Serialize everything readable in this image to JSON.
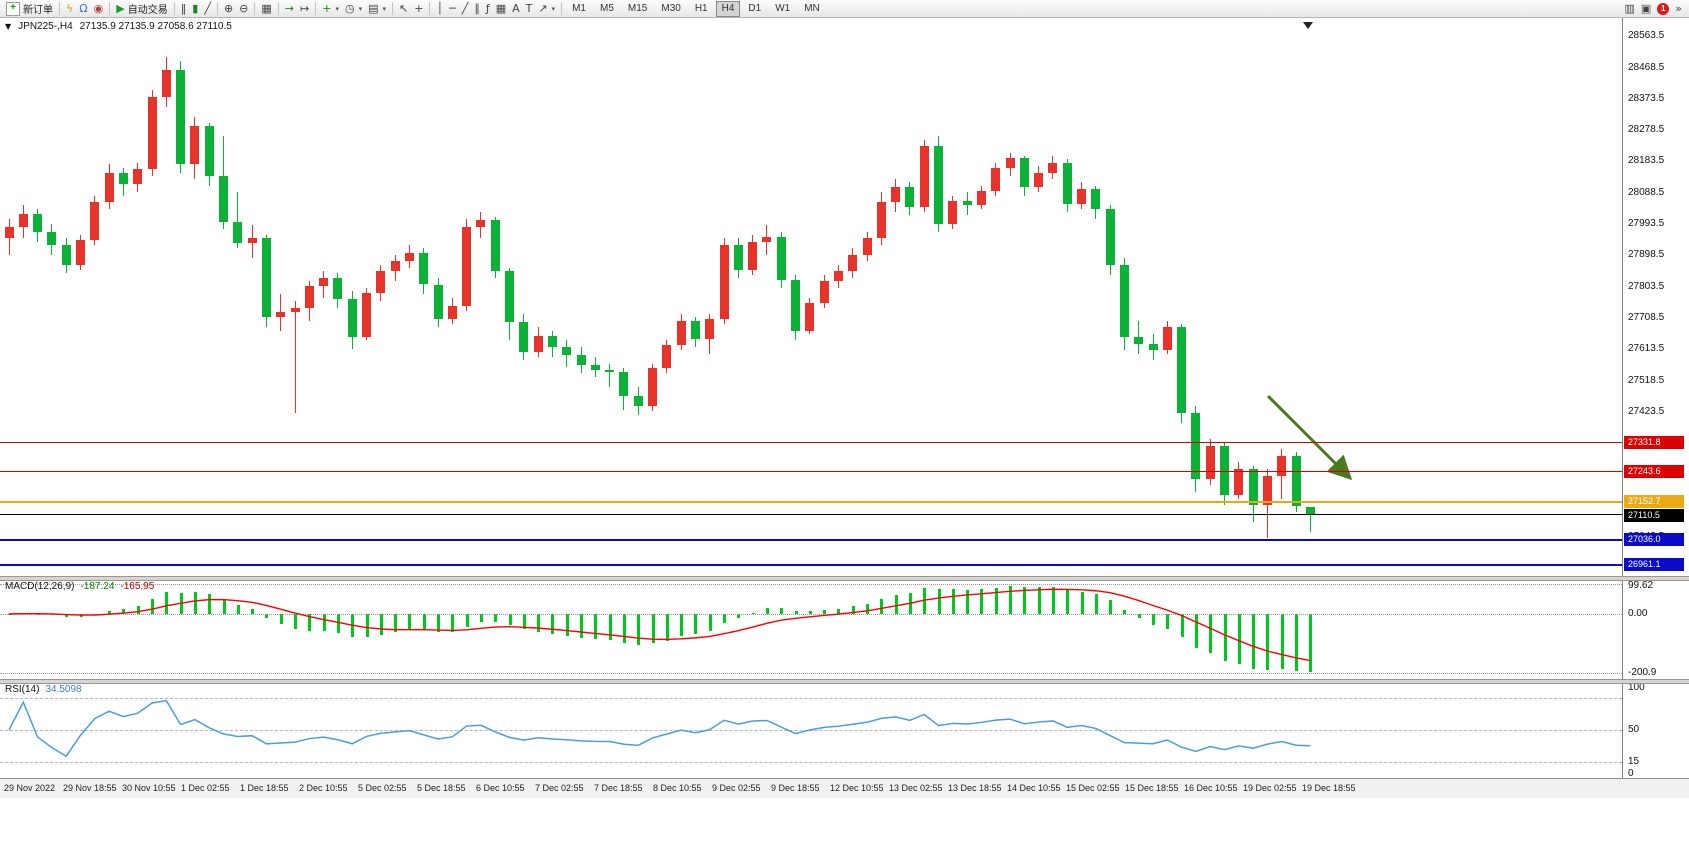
{
  "toolbar": {
    "new_order": "新订单",
    "autotrading": "自动交易",
    "timeframes": [
      "M1",
      "M5",
      "M15",
      "M30",
      "H1",
      "H4",
      "D1",
      "W1",
      "MN"
    ],
    "active_timeframe": "H4",
    "notification_count": "1"
  },
  "icons": {
    "new_order": "+",
    "lightning": "ϟ",
    "headset": "Ω",
    "record": "◉",
    "autotrading_play": "▶",
    "bar_chart": "‖",
    "candle_chart": "▮",
    "line_chart": "╱",
    "zoom_in": "⊕",
    "zoom_out": "⊖",
    "tile_windows": "▦",
    "auto_scroll": "→",
    "chart_shift": "↦",
    "indicators_add": "+",
    "periods": "◷",
    "templates": "▤",
    "cursor": "↖",
    "crosshair": "+",
    "vline": "│",
    "hline": "─",
    "trendline": "╱",
    "channel": "∥",
    "fibonacci": "ƒ",
    "grid": "▦",
    "text": "A",
    "text_label": "T",
    "arrows_tool": "↗",
    "dropdown": "▾",
    "mini_chart": "▥",
    "window": "▣",
    "overflow": "»",
    "symbol_dropdown": "▼"
  },
  "chart": {
    "symbol_period": "JPN225-,H4",
    "ohlc": "27135.9 27135.9 27058.6 27110.5"
  },
  "indicators": {
    "macd_label": "MACD(12,26,9)",
    "macd_value": "-187.24",
    "macd_signal_value": "-165.95",
    "macd_scale": [
      "99.62",
      "0.00",
      "-200.9"
    ],
    "rsi_label": "RSI(14)",
    "rsi_value": "34.5098",
    "rsi_levels": [
      85,
      50,
      15
    ],
    "rsi_scale_labels": [
      {
        "text": "100",
        "v": 100
      },
      {
        "text": "50",
        "v": 50
      },
      {
        "text": "15",
        "v": 15
      },
      {
        "text": "0",
        "v": 0
      }
    ]
  },
  "price_axis": {
    "gridline_labels": [
      "28563.5",
      "28468.5",
      "28373.5",
      "28278.5",
      "28183.5",
      "28088.5",
      "27993.5",
      "27898.5",
      "27803.5",
      "27708.5",
      "27613.5",
      "27518.5",
      "27423.5",
      "27328.5",
      "27233.5",
      "27138.5",
      "27043.5",
      "26948.5"
    ]
  },
  "price_lines": [
    {
      "label": "27331.8",
      "price": 27331.8,
      "color": "#dd0000",
      "width": 1
    },
    {
      "label": "27243.6",
      "price": 27243.6,
      "color": "#dd0000",
      "width": 1
    },
    {
      "label": "27152.7",
      "price": 27152.7,
      "color": "#eda913",
      "width": 2
    },
    {
      "label": "27110.5",
      "price": 27110.5,
      "color": "#000000",
      "width": 1
    },
    {
      "label": "27036.0",
      "price": 27036.0,
      "color": "#0a0ac8",
      "width": 2
    },
    {
      "label": "26961.1",
      "price": 26961.1,
      "color": "#0a0ac8",
      "width": 2
    }
  ],
  "time_axis": [
    "29 Nov 2022",
    "29 Nov 18:55",
    "30 Nov 10:55",
    "1 Dec 02:55",
    "1 Dec 18:55",
    "2 Dec 10:55",
    "5 Dec 02:55",
    "5 Dec 18:55",
    "6 Dec 10:55",
    "7 Dec 02:55",
    "7 Dec 18:55",
    "8 Dec 10:55",
    "9 Dec 02:55",
    "9 Dec 18:55",
    "12 Dec 10:55",
    "13 Dec 02:55",
    "13 Dec 18:55",
    "14 Dec 10:55",
    "15 Dec 02:55",
    "15 Dec 18:55",
    "16 Dec 10:55",
    "19 Dec 02:55",
    "19 Dec 18:55"
  ],
  "chart_data": {
    "type": "candlestick",
    "symbol": "JPN225-",
    "timeframe": "H4",
    "ylim": [
      26925,
      28610
    ],
    "note": "Chinese color convention: red = bullish, green = bearish",
    "colors": {
      "bull": "#e8332a",
      "bear": "#0bb237",
      "macd_hist": "#00c91e",
      "macd_signal": "#ff0000",
      "rsi_line": "#4a9edb",
      "arrow": "#4a7a1e"
    },
    "candles_ohlc": [
      [
        27950,
        28010,
        27900,
        27985
      ],
      [
        27985,
        28050,
        27950,
        28025
      ],
      [
        28025,
        28040,
        27940,
        27970
      ],
      [
        27970,
        27995,
        27900,
        27930
      ],
      [
        27930,
        27950,
        27845,
        27870
      ],
      [
        27870,
        27960,
        27855,
        27945
      ],
      [
        27945,
        28080,
        27930,
        28060
      ],
      [
        28060,
        28175,
        28040,
        28150
      ],
      [
        28150,
        28165,
        28080,
        28115
      ],
      [
        28115,
        28180,
        28090,
        28160
      ],
      [
        28160,
        28400,
        28140,
        28380
      ],
      [
        28380,
        28500,
        28350,
        28460
      ],
      [
        28460,
        28490,
        28150,
        28175
      ],
      [
        28175,
        28320,
        28130,
        28290
      ],
      [
        28290,
        28300,
        28110,
        28140
      ],
      [
        28140,
        28260,
        27980,
        28000
      ],
      [
        28000,
        28090,
        27920,
        27935
      ],
      [
        27935,
        27990,
        27890,
        27950
      ],
      [
        27950,
        27960,
        27680,
        27710
      ],
      [
        27710,
        27780,
        27670,
        27725
      ],
      [
        27725,
        27760,
        27420,
        27740
      ],
      [
        27740,
        27820,
        27700,
        27805
      ],
      [
        27805,
        27850,
        27770,
        27830
      ],
      [
        27830,
        27845,
        27740,
        27765
      ],
      [
        27765,
        27790,
        27615,
        27650
      ],
      [
        27650,
        27800,
        27640,
        27785
      ],
      [
        27785,
        27870,
        27760,
        27850
      ],
      [
        27850,
        27900,
        27820,
        27880
      ],
      [
        27880,
        27930,
        27860,
        27905
      ],
      [
        27905,
        27920,
        27780,
        27810
      ],
      [
        27810,
        27830,
        27680,
        27705
      ],
      [
        27705,
        27770,
        27690,
        27745
      ],
      [
        27745,
        28010,
        27730,
        27985
      ],
      [
        27985,
        28030,
        27950,
        28005
      ],
      [
        28005,
        28015,
        27830,
        27850
      ],
      [
        27850,
        27860,
        27640,
        27695
      ],
      [
        27695,
        27720,
        27580,
        27605
      ],
      [
        27605,
        27680,
        27590,
        27655
      ],
      [
        27655,
        27670,
        27590,
        27620
      ],
      [
        27620,
        27640,
        27560,
        27595
      ],
      [
        27595,
        27620,
        27540,
        27565
      ],
      [
        27565,
        27590,
        27530,
        27550
      ],
      [
        27550,
        27570,
        27500,
        27545
      ],
      [
        27545,
        27555,
        27430,
        27470
      ],
      [
        27470,
        27500,
        27415,
        27440
      ],
      [
        27440,
        27570,
        27425,
        27555
      ],
      [
        27555,
        27640,
        27540,
        27625
      ],
      [
        27625,
        27720,
        27610,
        27700
      ],
      [
        27700,
        27710,
        27620,
        27645
      ],
      [
        27645,
        27720,
        27600,
        27705
      ],
      [
        27705,
        27950,
        27690,
        27930
      ],
      [
        27930,
        27950,
        27830,
        27855
      ],
      [
        27855,
        27960,
        27840,
        27940
      ],
      [
        27940,
        27990,
        27900,
        27955
      ],
      [
        27955,
        27970,
        27800,
        27825
      ],
      [
        27825,
        27840,
        27640,
        27670
      ],
      [
        27670,
        27770,
        27660,
        27755
      ],
      [
        27755,
        27840,
        27740,
        27820
      ],
      [
        27820,
        27870,
        27800,
        27850
      ],
      [
        27850,
        27920,
        27830,
        27900
      ],
      [
        27900,
        27970,
        27880,
        27950
      ],
      [
        27950,
        28090,
        27930,
        28060
      ],
      [
        28060,
        28130,
        28030,
        28105
      ],
      [
        28105,
        28120,
        28020,
        28045
      ],
      [
        28045,
        28250,
        28030,
        28230
      ],
      [
        28230,
        28260,
        27970,
        27995
      ],
      [
        27995,
        28080,
        27980,
        28065
      ],
      [
        28065,
        28090,
        28020,
        28050
      ],
      [
        28050,
        28110,
        28040,
        28095
      ],
      [
        28095,
        28180,
        28080,
        28165
      ],
      [
        28165,
        28210,
        28140,
        28195
      ],
      [
        28195,
        28200,
        28080,
        28105
      ],
      [
        28105,
        28170,
        28090,
        28150
      ],
      [
        28150,
        28200,
        28130,
        28180
      ],
      [
        28180,
        28190,
        28030,
        28055
      ],
      [
        28055,
        28120,
        28040,
        28100
      ],
      [
        28100,
        28110,
        28010,
        28040
      ],
      [
        28040,
        28050,
        27840,
        27870
      ],
      [
        27870,
        27890,
        27610,
        27650
      ],
      [
        27650,
        27700,
        27600,
        27630
      ],
      [
        27630,
        27660,
        27580,
        27610
      ],
      [
        27610,
        27700,
        27600,
        27680
      ],
      [
        27680,
        27690,
        27390,
        27420
      ],
      [
        27420,
        27440,
        27180,
        27220
      ],
      [
        27220,
        27340,
        27200,
        27320
      ],
      [
        27320,
        27330,
        27140,
        27170
      ],
      [
        27170,
        27270,
        27160,
        27250
      ],
      [
        27250,
        27260,
        27090,
        27140
      ],
      [
        27140,
        27250,
        27040,
        27230
      ],
      [
        27230,
        27310,
        27160,
        27290
      ],
      [
        27290,
        27300,
        27120,
        27136
      ],
      [
        27135.9,
        27135.9,
        27058.6,
        27110.5
      ]
    ],
    "annotations": [
      {
        "type": "arrow",
        "color": "#4a7a1e",
        "direction": "down-right"
      }
    ]
  }
}
